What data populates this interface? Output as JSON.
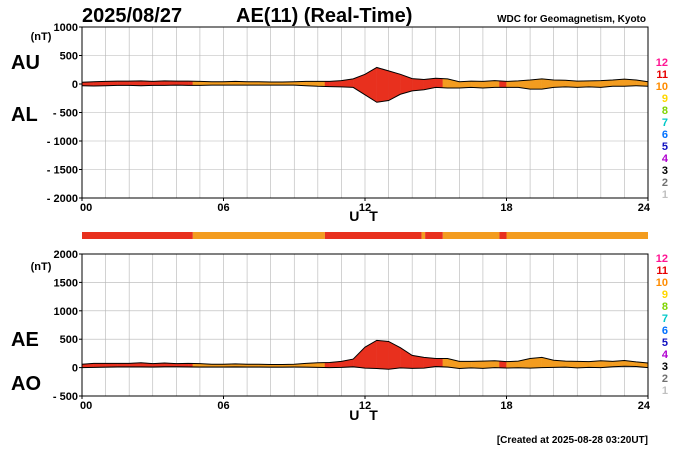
{
  "header": {
    "date": "2025/08/27",
    "title": "AE(11) (Real-Time)",
    "organization": "WDC for Geomagnetism, Kyoto"
  },
  "footer": {
    "created": "[Created at 2025-08-28 03:20UT]"
  },
  "colors": {
    "dominant_level": "#e8301e",
    "secondary_level": "#f39c1f",
    "grid": "#b5b5b5",
    "line": "#000000"
  },
  "station_scale": {
    "labels": [
      "12",
      "11",
      "10",
      "9",
      "8",
      "7",
      "6",
      "5",
      "4",
      "3",
      "2",
      "1"
    ],
    "colors": [
      "#ff1493",
      "#e60000",
      "#ff8c00",
      "#ffd700",
      "#7fd400",
      "#00c8c8",
      "#0070ff",
      "#1010c0",
      "#b000d0",
      "#000000",
      "#707070",
      "#c0c0c0"
    ]
  },
  "chart_data": [
    {
      "type": "area",
      "name": "upper-panel",
      "series_labels": [
        "AU",
        "AL"
      ],
      "unit": "(nT)",
      "xlabel": "U T",
      "xlim": [
        0,
        24
      ],
      "xticks": [
        "00",
        "06",
        "12",
        "18",
        "24"
      ],
      "ylim": [
        -2000,
        1000
      ],
      "yticks": [
        1000,
        500,
        0,
        -500,
        -1000,
        -1500,
        -2000
      ],
      "ytick_labels": [
        "1000",
        "500",
        "0",
        "- 500",
        "- 1000",
        "- 1500",
        "- 2000"
      ],
      "hours": [
        0,
        0.5,
        1,
        1.5,
        2,
        2.5,
        3,
        3.5,
        4,
        4.5,
        5,
        5.5,
        6,
        6.5,
        7,
        7.5,
        8,
        8.5,
        9,
        9.5,
        10,
        10.5,
        11,
        11.5,
        12,
        12.5,
        13,
        13.5,
        14,
        14.5,
        15,
        15.5,
        16,
        16.5,
        17,
        17.5,
        18,
        18.5,
        19,
        19.5,
        20,
        20.5,
        21,
        21.5,
        22,
        22.5,
        23,
        23.5,
        24
      ],
      "au": [
        30,
        40,
        45,
        50,
        50,
        55,
        45,
        55,
        50,
        50,
        45,
        40,
        40,
        45,
        40,
        40,
        35,
        35,
        40,
        45,
        45,
        45,
        60,
        90,
        170,
        290,
        230,
        170,
        95,
        80,
        100,
        90,
        40,
        50,
        45,
        60,
        45,
        55,
        70,
        90,
        70,
        65,
        50,
        55,
        60,
        70,
        85,
        70,
        40
      ],
      "al": [
        -30,
        -35,
        -30,
        -25,
        -25,
        -30,
        -25,
        -25,
        -20,
        -25,
        -25,
        -20,
        -20,
        -20,
        -20,
        -20,
        -20,
        -20,
        -20,
        -30,
        -40,
        -45,
        -50,
        -60,
        -190,
        -320,
        -290,
        -180,
        -120,
        -100,
        -60,
        -70,
        -70,
        -60,
        -70,
        -60,
        -60,
        -60,
        -90,
        -90,
        -60,
        -50,
        -60,
        -50,
        -60,
        -40,
        -40,
        -30,
        -40
      ]
    },
    {
      "type": "area",
      "name": "lower-panel",
      "series_labels": [
        "AE",
        "AO"
      ],
      "unit": "(nT)",
      "xlabel": "U T",
      "xlim": [
        0,
        24
      ],
      "xticks": [
        "00",
        "06",
        "12",
        "18",
        "24"
      ],
      "ylim": [
        -500,
        2000
      ],
      "yticks": [
        2000,
        1500,
        1000,
        500,
        0,
        -500
      ],
      "ytick_labels": [
        "2000",
        "1500",
        "1000",
        "500",
        "0",
        "- 500"
      ],
      "hours": [
        0,
        0.5,
        1,
        1.5,
        2,
        2.5,
        3,
        3.5,
        4,
        4.5,
        5,
        5.5,
        6,
        6.5,
        7,
        7.5,
        8,
        8.5,
        9,
        9.5,
        10,
        10.5,
        11,
        11.5,
        12,
        12.5,
        13,
        13.5,
        14,
        14.5,
        15,
        15.5,
        16,
        16.5,
        17,
        17.5,
        18,
        18.5,
        19,
        19.5,
        20,
        20.5,
        21,
        21.5,
        22,
        22.5,
        23,
        23.5,
        24
      ],
      "ae": [
        60,
        75,
        75,
        75,
        75,
        85,
        70,
        80,
        70,
        75,
        70,
        60,
        60,
        65,
        60,
        60,
        55,
        55,
        60,
        75,
        85,
        90,
        110,
        150,
        360,
        480,
        460,
        350,
        215,
        180,
        160,
        160,
        110,
        110,
        115,
        120,
        105,
        115,
        160,
        180,
        130,
        115,
        110,
        105,
        120,
        110,
        125,
        100,
        80
      ],
      "ao": [
        0,
        3,
        8,
        13,
        13,
        13,
        10,
        15,
        15,
        13,
        10,
        10,
        10,
        13,
        10,
        10,
        8,
        8,
        10,
        8,
        3,
        0,
        5,
        15,
        -10,
        -15,
        -30,
        -5,
        -13,
        -10,
        20,
        10,
        -15,
        -5,
        -13,
        0,
        -8,
        -3,
        -10,
        0,
        5,
        8,
        -5,
        3,
        0,
        15,
        23,
        20,
        0
      ]
    }
  ],
  "level_bar": {
    "description_label": "",
    "segments": [
      {
        "from": 0,
        "to": 4.7,
        "level": "11"
      },
      {
        "from": 4.7,
        "to": 10.3,
        "level": "10"
      },
      {
        "from": 10.3,
        "to": 14.4,
        "level": "11"
      },
      {
        "from": 14.4,
        "to": 14.55,
        "level": "10"
      },
      {
        "from": 14.55,
        "to": 15.3,
        "level": "11"
      },
      {
        "from": 15.3,
        "to": 17.7,
        "level": "10"
      },
      {
        "from": 17.7,
        "to": 18.0,
        "level": "11"
      },
      {
        "from": 18.0,
        "to": 24,
        "level": "10"
      }
    ],
    "upper_red_spans": [
      [
        0,
        4.7
      ],
      [
        10.3,
        15.3
      ],
      [
        17.7,
        18.0
      ]
    ],
    "lower_red_spans": [
      [
        0,
        4.7
      ],
      [
        10.3,
        15.3
      ],
      [
        17.7,
        18.0
      ]
    ]
  }
}
